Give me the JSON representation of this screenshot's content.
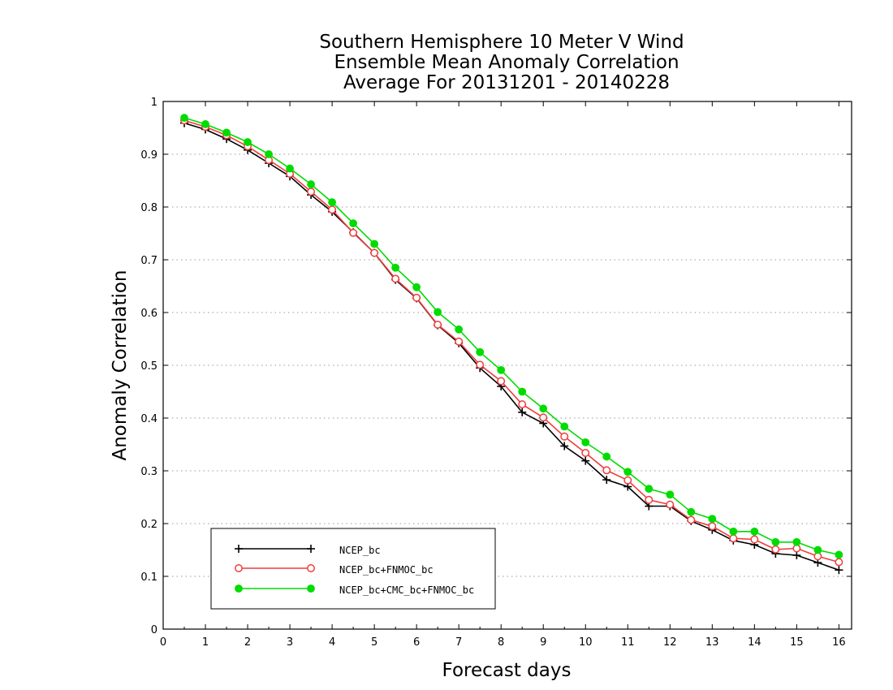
{
  "chart_data": {
    "type": "line",
    "title": [
      "Southern Hemisphere 10 Meter V Wind",
      "Ensemble Mean Anomaly Correlation",
      "Average For 20131201 - 20140228"
    ],
    "xlabel": "Forecast days",
    "ylabel": "Anomaly Correlation",
    "xlim": [
      0,
      16.3
    ],
    "ylim": [
      0,
      1
    ],
    "xticks": [
      "0",
      "1",
      "2",
      "3",
      "4",
      "5",
      "6",
      "7",
      "8",
      "9",
      "10",
      "11",
      "12",
      "13",
      "14",
      "15",
      "16"
    ],
    "yticks": [
      "0",
      "0.1",
      "0.2",
      "0.3",
      "0.4",
      "0.5",
      "0.6",
      "0.7",
      "0.8",
      "0.9",
      "1"
    ],
    "grid": "dotted horizontal",
    "legend_position": "lower-left",
    "x": [
      0.5,
      1,
      1.5,
      2,
      2.5,
      3,
      3.5,
      4,
      4.5,
      5,
      5.5,
      6,
      6.5,
      7,
      7.5,
      8,
      8.5,
      9,
      9.5,
      10,
      10.5,
      11,
      11.5,
      12,
      12.5,
      13,
      13.5,
      14,
      14.5,
      15,
      15.5,
      16
    ],
    "series": [
      {
        "name": "NCEP_bc",
        "color": "#000000",
        "marker": "plus",
        "values": [
          0.959,
          0.947,
          0.929,
          0.908,
          0.883,
          0.858,
          0.823,
          0.791,
          0.752,
          0.713,
          0.662,
          0.627,
          0.576,
          0.542,
          0.495,
          0.46,
          0.411,
          0.39,
          0.347,
          0.319,
          0.283,
          0.27,
          0.233,
          0.233,
          0.205,
          0.188,
          0.168,
          0.16,
          0.143,
          0.14,
          0.126,
          0.112
        ]
      },
      {
        "name": "NCEP_bc+FNMOC_bc",
        "color": "#f03c3c",
        "marker": "open-circle",
        "values": [
          0.964,
          0.952,
          0.936,
          0.915,
          0.889,
          0.863,
          0.829,
          0.795,
          0.751,
          0.713,
          0.664,
          0.628,
          0.577,
          0.545,
          0.501,
          0.47,
          0.426,
          0.401,
          0.365,
          0.334,
          0.301,
          0.282,
          0.245,
          0.236,
          0.207,
          0.195,
          0.172,
          0.17,
          0.151,
          0.153,
          0.138,
          0.127
        ]
      },
      {
        "name": "NCEP_bc+CMC_bc+FNMOC_bc",
        "color": "#00dc00",
        "marker": "filled-circle",
        "values": [
          0.969,
          0.957,
          0.941,
          0.923,
          0.9,
          0.873,
          0.843,
          0.809,
          0.769,
          0.73,
          0.685,
          0.648,
          0.601,
          0.568,
          0.525,
          0.491,
          0.45,
          0.418,
          0.384,
          0.354,
          0.327,
          0.298,
          0.266,
          0.255,
          0.222,
          0.209,
          0.185,
          0.185,
          0.165,
          0.165,
          0.15,
          0.141
        ]
      }
    ]
  }
}
